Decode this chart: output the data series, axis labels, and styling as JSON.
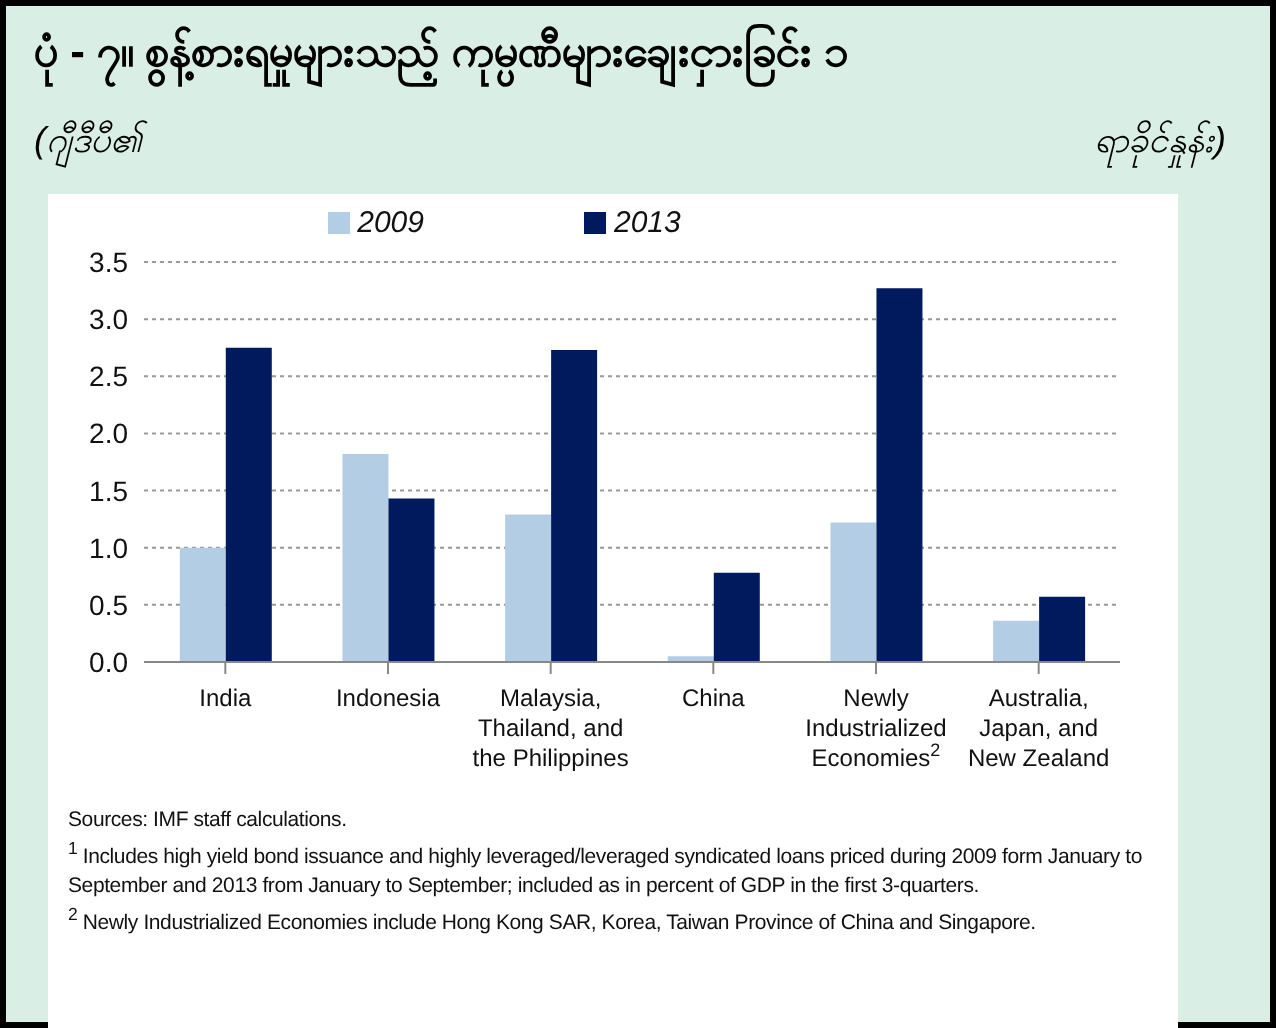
{
  "chart_data": {
    "type": "bar",
    "title": "ပုံ - ၇။ စွန့်စားရမှုများသည့် ကုမ္ပဏီများချေးငှားခြင်း ၁",
    "subtitle": "(ဂျီဒီပီ၏",
    "ylabel": "ရာခိုင်နှုန်း)",
    "categories": [
      "India",
      "Indonesia",
      "Malaysia, Thailand, and the Philippines",
      "China",
      "Newly Industrialized Economies$^{2}$",
      "Australia, Japan, and New Zealand"
    ],
    "series": [
      {
        "name": "2009",
        "color": "#b3cde4",
        "values": [
          1.0,
          1.82,
          1.29,
          0.05,
          1.22,
          0.36
        ]
      },
      {
        "name": "2013",
        "color": "#001a5e",
        "values": [
          2.75,
          1.43,
          2.73,
          0.78,
          3.27,
          0.57
        ]
      }
    ],
    "ylim": [
      0,
      3.5
    ],
    "yticks": [
      {
        "value": 0,
        "label": "0.0"
      },
      {
        "value": 0.5,
        "label": "0.5"
      },
      {
        "value": 1,
        "label": "1.0"
      },
      {
        "value": 1.5,
        "label": "1.5"
      },
      {
        "value": 2,
        "label": "2.0"
      },
      {
        "value": 2.5,
        "label": "2.5"
      },
      {
        "value": 3,
        "label": "3.0"
      },
      {
        "value": 3.5,
        "label": "3.5"
      }
    ],
    "grid": "y",
    "legend": "top",
    "annotations": [
      "Sources: IMF staff calculations.",
      "$^{1}$ Includes high yield bond issuance and highly leveraged/leveraged syndicated loans priced during 2009 form January to September and 2013 from January to September; included as in percent of GDP in the first 3-quarters.",
      "$^{2}$ Newly Industrialized Economies include Hong Kong SAR, Korea, Taiwan Province of China and Singapore."
    ]
  }
}
